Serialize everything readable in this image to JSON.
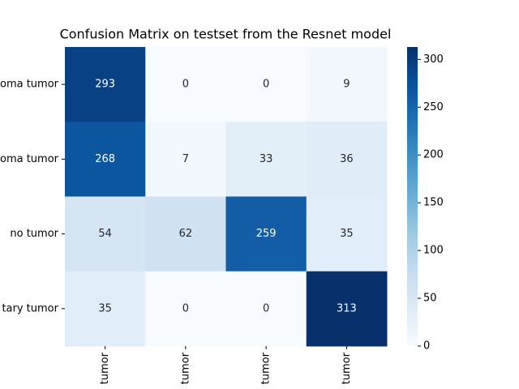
{
  "chart_data": {
    "type": "heatmap",
    "title": "Confusion Matrix on testset from the Resnet model",
    "x_categories": [
      "tumor",
      "tumor",
      "tumor",
      "tumor"
    ],
    "y_categories": [
      "oma tumor",
      "oma tumor",
      "no tumor",
      "tary tumor"
    ],
    "z": [
      [
        293,
        0,
        0,
        9
      ],
      [
        268,
        7,
        33,
        36
      ],
      [
        54,
        62,
        259,
        35
      ],
      [
        35,
        0,
        0,
        313
      ]
    ],
    "zlim": [
      0,
      313
    ],
    "zticks": [
      0,
      50,
      100,
      150,
      200,
      250,
      300
    ],
    "colorscale": [
      "#f7fbff",
      "#deebf7",
      "#c6dbef",
      "#9ecae1",
      "#6baed6",
      "#4292c6",
      "#2171b5",
      "#08519c",
      "#08306b"
    ]
  }
}
